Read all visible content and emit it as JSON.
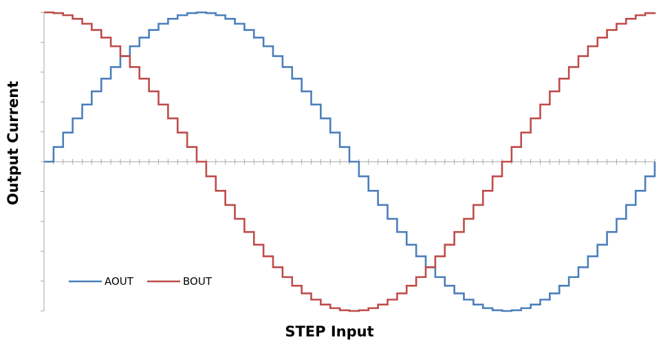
{
  "chart_data": {
    "type": "line",
    "subtype": "stepped",
    "title": "",
    "xlabel": "STEP Input",
    "ylabel": "Output Current",
    "x_tick_labels_visible": false,
    "y_tick_labels_visible": false,
    "xlim": [
      0,
      64
    ],
    "ylim": [
      -1,
      1
    ],
    "y_major_ticks": [
      -1,
      -0.8,
      -0.6,
      -0.4,
      -0.2,
      0,
      0.2,
      0.4,
      0.6,
      0.8,
      1
    ],
    "x_minor_tick_count": 64,
    "grid": false,
    "legend_position": "bottom-left",
    "x": [
      0,
      1,
      2,
      3,
      4,
      5,
      6,
      7,
      8,
      9,
      10,
      11,
      12,
      13,
      14,
      15,
      16,
      17,
      18,
      19,
      20,
      21,
      22,
      23,
      24,
      25,
      26,
      27,
      28,
      29,
      30,
      31,
      32,
      33,
      34,
      35,
      36,
      37,
      38,
      39,
      40,
      41,
      42,
      43,
      44,
      45,
      46,
      47,
      48,
      49,
      50,
      51,
      52,
      53,
      54,
      55,
      56,
      57,
      58,
      59,
      60,
      61,
      62,
      63,
      64
    ],
    "series": [
      {
        "name": "AOUT",
        "color": "#4A7EBB",
        "values": [
          0,
          0.098,
          0.195,
          0.29,
          0.383,
          0.471,
          0.556,
          0.634,
          0.707,
          0.773,
          0.831,
          0.882,
          0.924,
          0.957,
          0.981,
          0.995,
          1,
          0.995,
          0.981,
          0.957,
          0.924,
          0.882,
          0.831,
          0.773,
          0.707,
          0.634,
          0.556,
          0.471,
          0.383,
          0.29,
          0.195,
          0.098,
          0,
          -0.098,
          -0.195,
          -0.29,
          -0.383,
          -0.471,
          -0.556,
          -0.634,
          -0.707,
          -0.773,
          -0.831,
          -0.882,
          -0.924,
          -0.957,
          -0.981,
          -0.995,
          -1,
          -0.995,
          -0.981,
          -0.957,
          -0.924,
          -0.882,
          -0.831,
          -0.773,
          -0.707,
          -0.634,
          -0.556,
          -0.471,
          -0.383,
          -0.29,
          -0.195,
          -0.098,
          0
        ]
      },
      {
        "name": "BOUT",
        "color": "#BE4B48",
        "values": [
          1,
          0.995,
          0.981,
          0.957,
          0.924,
          0.882,
          0.831,
          0.773,
          0.707,
          0.634,
          0.556,
          0.471,
          0.383,
          0.29,
          0.195,
          0.098,
          0,
          -0.098,
          -0.195,
          -0.29,
          -0.383,
          -0.471,
          -0.556,
          -0.634,
          -0.707,
          -0.773,
          -0.831,
          -0.882,
          -0.924,
          -0.957,
          -0.981,
          -0.995,
          -1,
          -0.995,
          -0.981,
          -0.957,
          -0.924,
          -0.882,
          -0.831,
          -0.773,
          -0.707,
          -0.634,
          -0.556,
          -0.471,
          -0.383,
          -0.29,
          -0.195,
          -0.098,
          0,
          0.098,
          0.195,
          0.29,
          0.383,
          0.471,
          0.556,
          0.634,
          0.707,
          0.773,
          0.831,
          0.882,
          0.924,
          0.957,
          0.981,
          0.995,
          1
        ]
      }
    ]
  },
  "colors": {
    "axis": "#A6A6A6",
    "background": "#FFFFFF"
  }
}
